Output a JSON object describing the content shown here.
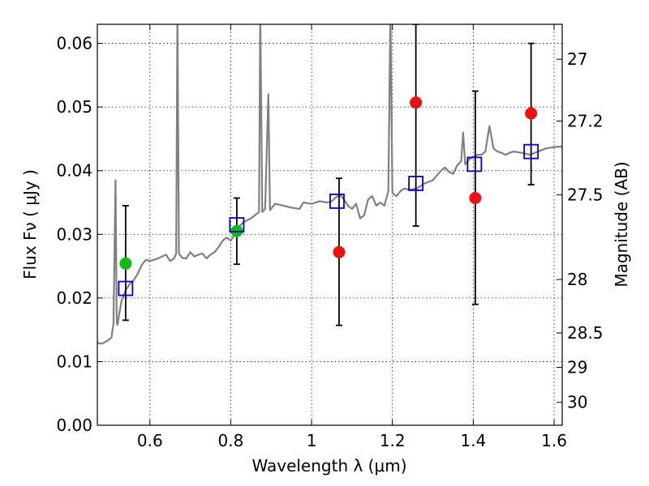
{
  "chart_data": {
    "type": "scatter",
    "xlabel": "Wavelength  λ (μm)",
    "ylabel": "Flux  Fν  ( μJy )",
    "ylabel_right": "Magnitude (AB)",
    "xlim": [
      0.47,
      1.62
    ],
    "ylim": [
      0.0,
      0.063
    ],
    "grid": true,
    "x_ticks": [
      0.6,
      0.8,
      1.0,
      1.2,
      1.4,
      1.6
    ],
    "x_tick_labels": [
      "0.6",
      "0.8",
      "1",
      "1.2",
      "1.4",
      "1.6"
    ],
    "y_ticks": [
      0.0,
      0.01,
      0.02,
      0.03,
      0.04,
      0.05,
      0.06
    ],
    "y_tick_labels": [
      "0.00",
      "0.01",
      "0.02",
      "0.03",
      "0.04",
      "0.05",
      "0.06"
    ],
    "mag_ticks": [
      {
        "label": "27",
        "flux": 0.0575
      },
      {
        "label": "27.2",
        "flux": 0.0478
      },
      {
        "label": "27.5",
        "flux": 0.0362
      },
      {
        "label": "28",
        "flux": 0.0229
      },
      {
        "label": "28.5",
        "flux": 0.0145
      },
      {
        "label": "29",
        "flux": 0.0091
      },
      {
        "label": "30",
        "flux": 0.0036
      }
    ],
    "colors": {
      "spectrum": "#808080",
      "green_points": "#11bb11",
      "red_points": "#ee1111",
      "model_squares": "#0000cc",
      "error_bars": "#000000"
    },
    "series": [
      {
        "kind": "spectrum",
        "points": [
          [
            0.47,
            0.013
          ],
          [
            0.48,
            0.0128
          ],
          [
            0.49,
            0.0131
          ],
          [
            0.5,
            0.0135
          ],
          [
            0.505,
            0.0138
          ],
          [
            0.51,
            0.016
          ],
          [
            0.515,
            0.0385
          ],
          [
            0.518,
            0.016
          ],
          [
            0.52,
            0.0158
          ],
          [
            0.525,
            0.0178
          ],
          [
            0.53,
            0.0196
          ],
          [
            0.54,
            0.0212
          ],
          [
            0.55,
            0.0222
          ],
          [
            0.56,
            0.0228
          ],
          [
            0.57,
            0.0238
          ],
          [
            0.58,
            0.0252
          ],
          [
            0.59,
            0.026
          ],
          [
            0.6,
            0.0258
          ],
          [
            0.61,
            0.026
          ],
          [
            0.62,
            0.0262
          ],
          [
            0.63,
            0.0265
          ],
          [
            0.64,
            0.0268
          ],
          [
            0.65,
            0.0258
          ],
          [
            0.66,
            0.0262
          ],
          [
            0.665,
            0.027
          ],
          [
            0.668,
            0.065
          ],
          [
            0.672,
            0.027
          ],
          [
            0.68,
            0.0263
          ],
          [
            0.69,
            0.0262
          ],
          [
            0.7,
            0.0272
          ],
          [
            0.71,
            0.0265
          ],
          [
            0.72,
            0.0268
          ],
          [
            0.73,
            0.027
          ],
          [
            0.74,
            0.0262
          ],
          [
            0.75,
            0.0268
          ],
          [
            0.76,
            0.0272
          ],
          [
            0.77,
            0.028
          ],
          [
            0.78,
            0.029
          ],
          [
            0.79,
            0.0295
          ],
          [
            0.8,
            0.029
          ],
          [
            0.81,
            0.03
          ],
          [
            0.82,
            0.0312
          ],
          [
            0.83,
            0.0318
          ],
          [
            0.84,
            0.0322
          ],
          [
            0.85,
            0.0325
          ],
          [
            0.86,
            0.033
          ],
          [
            0.87,
            0.0335
          ],
          [
            0.873,
            0.065
          ],
          [
            0.878,
            0.0335
          ],
          [
            0.885,
            0.034
          ],
          [
            0.893,
            0.052
          ],
          [
            0.897,
            0.0338
          ],
          [
            0.91,
            0.0348
          ],
          [
            0.93,
            0.0345
          ],
          [
            0.95,
            0.0342
          ],
          [
            0.97,
            0.034
          ],
          [
            0.98,
            0.035
          ],
          [
            1.0,
            0.0348
          ],
          [
            1.02,
            0.0352
          ],
          [
            1.04,
            0.035
          ],
          [
            1.05,
            0.0352
          ],
          [
            1.06,
            0.0358
          ],
          [
            1.07,
            0.0362
          ],
          [
            1.08,
            0.0355
          ],
          [
            1.09,
            0.0345
          ],
          [
            1.1,
            0.034
          ],
          [
            1.11,
            0.0348
          ],
          [
            1.12,
            0.0325
          ],
          [
            1.13,
            0.033
          ],
          [
            1.14,
            0.0355
          ],
          [
            1.15,
            0.036
          ],
          [
            1.16,
            0.0345
          ],
          [
            1.17,
            0.035
          ],
          [
            1.18,
            0.0345
          ],
          [
            1.19,
            0.0368
          ],
          [
            1.195,
            0.065
          ],
          [
            1.2,
            0.0365
          ],
          [
            1.21,
            0.036
          ],
          [
            1.22,
            0.0368
          ],
          [
            1.23,
            0.0372
          ],
          [
            1.24,
            0.037
          ],
          [
            1.26,
            0.0372
          ],
          [
            1.28,
            0.038
          ],
          [
            1.3,
            0.0385
          ],
          [
            1.32,
            0.04
          ],
          [
            1.33,
            0.0405
          ],
          [
            1.34,
            0.0398
          ],
          [
            1.35,
            0.0395
          ],
          [
            1.36,
            0.0408
          ],
          [
            1.37,
            0.0415
          ],
          [
            1.375,
            0.046
          ],
          [
            1.38,
            0.041
          ],
          [
            1.39,
            0.0418
          ],
          [
            1.4,
            0.0422
          ],
          [
            1.41,
            0.0425
          ],
          [
            1.42,
            0.0425
          ],
          [
            1.43,
            0.043
          ],
          [
            1.44,
            0.047
          ],
          [
            1.45,
            0.0435
          ],
          [
            1.46,
            0.043
          ],
          [
            1.47,
            0.0428
          ],
          [
            1.48,
            0.0425
          ],
          [
            1.49,
            0.0428
          ],
          [
            1.5,
            0.043
          ],
          [
            1.52,
            0.0428
          ],
          [
            1.54,
            0.0425
          ],
          [
            1.56,
            0.043
          ],
          [
            1.58,
            0.0435
          ],
          [
            1.6,
            0.0437
          ],
          [
            1.62,
            0.0438
          ]
        ]
      },
      {
        "kind": "photometry_green",
        "points": [
          {
            "x": 0.54,
            "y": 0.0254,
            "yerr_low": 0.0165,
            "yerr_high": 0.0345
          },
          {
            "x": 0.815,
            "y": 0.0305,
            "yerr_low": 0.0253,
            "yerr_high": 0.0357
          }
        ]
      },
      {
        "kind": "photometry_red",
        "points": [
          {
            "x": 1.068,
            "y": 0.0272,
            "yerr_low": 0.0157,
            "yerr_high": 0.0388
          },
          {
            "x": 1.258,
            "y": 0.0507,
            "yerr_low": 0.0313,
            "yerr_high": 0.063
          },
          {
            "x": 1.405,
            "y": 0.0357,
            "yerr_low": 0.019,
            "yerr_high": 0.0525
          },
          {
            "x": 1.543,
            "y": 0.049,
            "yerr_low": 0.0378,
            "yerr_high": 0.06
          }
        ]
      },
      {
        "kind": "model_bandpass",
        "points": [
          {
            "x": 0.54,
            "y": 0.0215
          },
          {
            "x": 0.815,
            "y": 0.0315
          },
          {
            "x": 1.063,
            "y": 0.0352
          },
          {
            "x": 1.258,
            "y": 0.038
          },
          {
            "x": 1.403,
            "y": 0.041
          },
          {
            "x": 1.543,
            "y": 0.043
          }
        ]
      }
    ]
  }
}
